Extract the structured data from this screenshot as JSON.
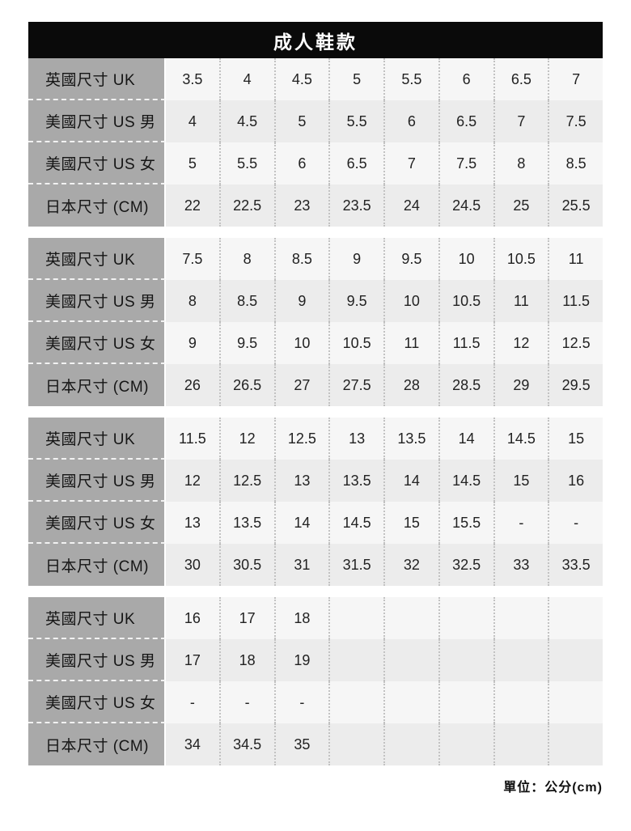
{
  "title": "成人鞋款",
  "unit_note": "單位：公分(cm)",
  "colors": {
    "header_bg": "#0a0a0a",
    "header_text": "#ffffff",
    "label_bg": "#a9a9a9",
    "row_light": "#f6f6f6",
    "row_dark": "#ececec",
    "dotted_divider": "#c2c2c2",
    "dashed_divider": "#f2f2f2",
    "text": "#222222"
  },
  "chart_data": {
    "type": "table",
    "title": "成人鞋款",
    "unit": "單位：公分(cm)",
    "row_labels": [
      "英國尺寸 UK",
      "美國尺寸 US 男",
      "美國尺寸 US 女",
      "日本尺寸 (CM)"
    ],
    "tables": [
      {
        "rows": [
          [
            "3.5",
            "4",
            "4.5",
            "5",
            "5.5",
            "6",
            "6.5",
            "7"
          ],
          [
            "4",
            "4.5",
            "5",
            "5.5",
            "6",
            "6.5",
            "7",
            "7.5"
          ],
          [
            "5",
            "5.5",
            "6",
            "6.5",
            "7",
            "7.5",
            "8",
            "8.5"
          ],
          [
            "22",
            "22.5",
            "23",
            "23.5",
            "24",
            "24.5",
            "25",
            "25.5"
          ]
        ]
      },
      {
        "rows": [
          [
            "7.5",
            "8",
            "8.5",
            "9",
            "9.5",
            "10",
            "10.5",
            "11"
          ],
          [
            "8",
            "8.5",
            "9",
            "9.5",
            "10",
            "10.5",
            "11",
            "11.5"
          ],
          [
            "9",
            "9.5",
            "10",
            "10.5",
            "11",
            "11.5",
            "12",
            "12.5"
          ],
          [
            "26",
            "26.5",
            "27",
            "27.5",
            "28",
            "28.5",
            "29",
            "29.5"
          ]
        ]
      },
      {
        "rows": [
          [
            "11.5",
            "12",
            "12.5",
            "13",
            "13.5",
            "14",
            "14.5",
            "15"
          ],
          [
            "12",
            "12.5",
            "13",
            "13.5",
            "14",
            "14.5",
            "15",
            "16"
          ],
          [
            "13",
            "13.5",
            "14",
            "14.5",
            "15",
            "15.5",
            "-",
            "-"
          ],
          [
            "30",
            "30.5",
            "31",
            "31.5",
            "32",
            "32.5",
            "33",
            "33.5"
          ]
        ]
      },
      {
        "rows": [
          [
            "16",
            "17",
            "18",
            "",
            "",
            "",
            "",
            ""
          ],
          [
            "17",
            "18",
            "19",
            "",
            "",
            "",
            "",
            ""
          ],
          [
            "-",
            "-",
            "-",
            "",
            "",
            "",
            "",
            ""
          ],
          [
            "34",
            "34.5",
            "35",
            "",
            "",
            "",
            "",
            ""
          ]
        ]
      }
    ]
  }
}
